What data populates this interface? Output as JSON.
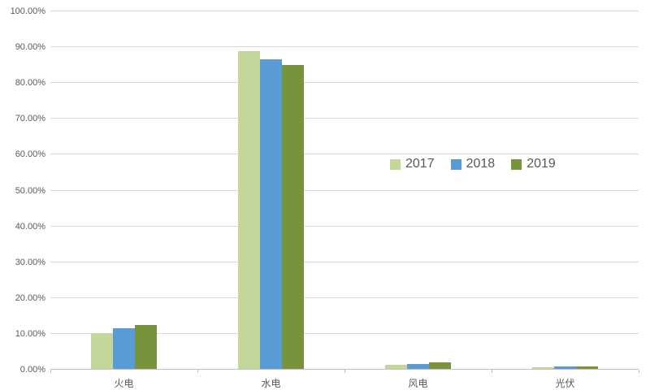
{
  "chart_data": {
    "type": "bar",
    "title": "",
    "categories": [
      "火电",
      "水电",
      "风电",
      "光伏"
    ],
    "series": [
      {
        "name": "2017",
        "color": "#c4d79b",
        "values": [
          9.9,
          88.7,
          1.1,
          0.4
        ]
      },
      {
        "name": "2018",
        "color": "#5b9bd5",
        "values": [
          11.4,
          86.3,
          1.4,
          0.6
        ]
      },
      {
        "name": "2019",
        "color": "#77933c",
        "values": [
          12.2,
          84.9,
          1.8,
          0.7
        ]
      }
    ],
    "ylim": [
      0,
      100
    ],
    "ytick_step": 10,
    "yticks": [
      "0.00%",
      "10.00%",
      "20.00%",
      "30.00%",
      "40.00%",
      "50.00%",
      "60.00%",
      "70.00%",
      "80.00%",
      "90.00%",
      "100.00%"
    ],
    "grid": true,
    "legend_position": "middle-right",
    "xlabel": "",
    "ylabel": ""
  }
}
